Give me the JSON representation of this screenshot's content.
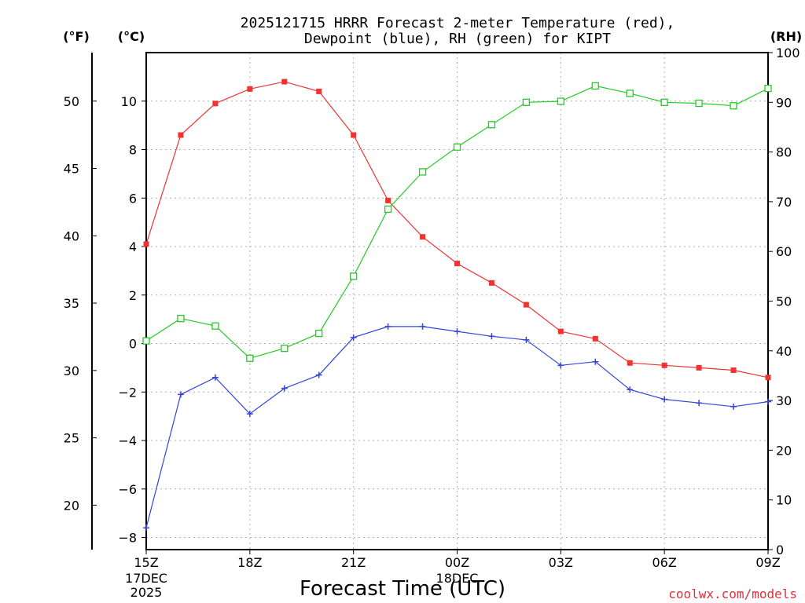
{
  "chart_data": {
    "type": "line",
    "title": [
      "2025121715 HRRR Forecast 2-meter Temperature (red),",
      "Dewpoint (blue), RH (green) for KIPT"
    ],
    "xlabel": "Forecast Time (UTC)",
    "units": {
      "fahrenheit": "(°F)",
      "celsius": "(°C)",
      "rh": "(RH)"
    },
    "x_ticks": [
      {
        "hour": 0,
        "label": "15Z",
        "sub": [
          "17DEC",
          "2025"
        ]
      },
      {
        "hour": 3,
        "label": "18Z",
        "sub": []
      },
      {
        "hour": 6,
        "label": "21Z",
        "sub": []
      },
      {
        "hour": 9,
        "label": "00Z",
        "sub": [
          "18DEC"
        ]
      },
      {
        "hour": 12,
        "label": "03Z",
        "sub": []
      },
      {
        "hour": 15,
        "label": "06Z",
        "sub": []
      },
      {
        "hour": 18,
        "label": "09Z",
        "sub": []
      }
    ],
    "xlim": [
      0,
      18
    ],
    "celsius_lim": [
      -8.5,
      12
    ],
    "celsius_ticks": [
      -8,
      -6,
      -4,
      -2,
      0,
      2,
      4,
      6,
      8,
      10
    ],
    "fahrenheit_ticks": [
      20,
      25,
      30,
      35,
      40,
      45,
      50
    ],
    "rh_lim": [
      0,
      100
    ],
    "rh_ticks": [
      0,
      10,
      20,
      30,
      40,
      50,
      60,
      70,
      80,
      90,
      100
    ],
    "series": [
      {
        "name": "Temperature",
        "unit": "C",
        "color": "#ee3333",
        "marker": "filled-square",
        "values": [
          4.1,
          8.6,
          9.9,
          10.5,
          10.8,
          10.4,
          8.6,
          5.9,
          4.4,
          3.3,
          2.5,
          1.6,
          0.5,
          0.2,
          -0.8,
          -0.9,
          -1.0,
          -1.1,
          -1.4
        ]
      },
      {
        "name": "Dewpoint",
        "unit": "C",
        "color": "#3344dd",
        "marker": "plus",
        "values": [
          -7.6,
          -2.1,
          -1.4,
          -2.9,
          -1.85,
          -1.3,
          0.25,
          0.7,
          0.7,
          0.5,
          0.3,
          0.15,
          -0.9,
          -0.75,
          -1.9,
          -2.3,
          -2.45,
          -2.6,
          -2.4
        ]
      },
      {
        "name": "RH",
        "unit": "%",
        "color": "#22cc22",
        "marker": "open-square",
        "values": [
          42,
          46.5,
          45,
          38.5,
          40.5,
          43.5,
          55,
          68.5,
          76,
          81,
          85.5,
          90,
          90.2,
          93.3,
          91.8,
          90,
          89.8,
          89.3,
          92.8
        ]
      }
    ]
  },
  "credit": "coolwx.com/models"
}
